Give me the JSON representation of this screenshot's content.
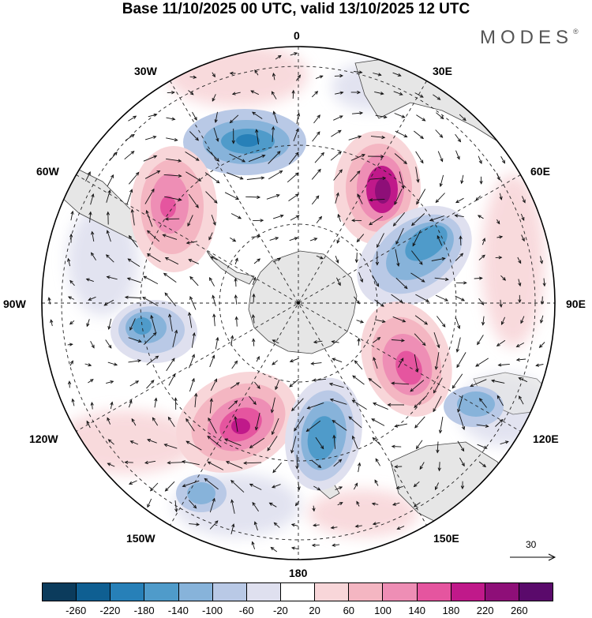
{
  "title": "Base 11/10/2025 00 UTC, valid 13/10/2025 12 UTC",
  "brand": {
    "name": "MODES",
    "mark": "®"
  },
  "longitude_labels": {
    "top": "0",
    "top_left_30": "30W",
    "top_right_30": "30E",
    "left_60": "60W",
    "right_60": "60E",
    "left_90": "90W",
    "right_90": "90E",
    "left_120": "120W",
    "right_120": "120E",
    "bottom_left_150": "150W",
    "bottom_right_150": "150E",
    "bottom": "180"
  },
  "reference_vector": {
    "label": "30"
  },
  "colorbar": {
    "ticks": [
      "-260",
      "-220",
      "-180",
      "-140",
      "-100",
      "-60",
      "-20",
      "20",
      "60",
      "100",
      "140",
      "180",
      "220",
      "260"
    ],
    "colors": [
      "#0b3b5c",
      "#0f5f92",
      "#2780b8",
      "#4f9bca",
      "#87b3da",
      "#b9c9e6",
      "#dfe0ef",
      "#ffffff",
      "#f8d6d9",
      "#f4b6c2",
      "#ee8eb5",
      "#e5559f",
      "#c0198a",
      "#8e0f78",
      "#5a0a6b"
    ]
  },
  "anomaly_centres": [
    {
      "kind": "negative",
      "value": -200,
      "lon": -10,
      "colat_deg": 52
    },
    {
      "kind": "positive",
      "value": 230,
      "lon": 27,
      "colat_deg": 46
    },
    {
      "kind": "negative",
      "value": -170,
      "lon": 58,
      "colat_deg": 52
    },
    {
      "kind": "positive",
      "value": 190,
      "lon": -40,
      "colat_deg": 62
    },
    {
      "kind": "negative",
      "value": -160,
      "lon": -105,
      "colat_deg": 55
    },
    {
      "kind": "positive",
      "value": 200,
      "lon": 112,
      "colat_deg": 45
    },
    {
      "kind": "negative",
      "value": -150,
      "lon": 124,
      "colat_deg": 73
    },
    {
      "kind": "positive",
      "value": 240,
      "lon": -150,
      "colat_deg": 43
    },
    {
      "kind": "negative",
      "value": -180,
      "lon": 170,
      "colat_deg": 53
    },
    {
      "kind": "negative",
      "value": -120,
      "lon": -148,
      "colat_deg": 73
    }
  ]
}
